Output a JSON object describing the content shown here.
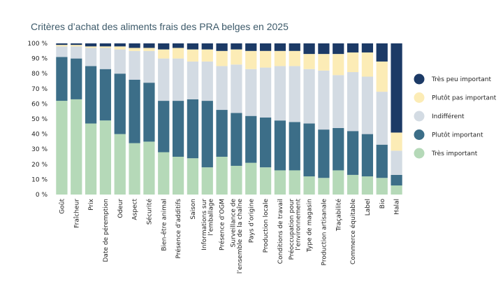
{
  "chart_data": {
    "type": "bar",
    "stacked": true,
    "title": "Critères d’achat des aliments frais des PRA belges en 2025",
    "xlabel": "",
    "ylabel": "",
    "ylim": [
      0,
      100
    ],
    "ytick_labels": [
      "0 %",
      "10 %",
      "20 %",
      "30 %",
      "40 %",
      "50 %",
      "60 %",
      "70 %",
      "80 %",
      "90 %",
      "100 %"
    ],
    "legend_position": "right",
    "categories": [
      "Goût",
      "Fraîcheur",
      "Prix",
      "Date de péremption",
      "Odeur",
      "Aspect",
      "Sécurité",
      "Bien-être animal",
      "Présence d’additifs",
      "Saison",
      "Informations sur l’emballage",
      "Présence d’OGM",
      "Surveillance de l’ensemble de la chaîne",
      "Pays d’origine",
      "Production locale",
      "Conditions de travail",
      "Préoccupation pour l’environnement",
      "Type de magasin",
      "Production artisanale",
      "Traçabilité",
      "Commerce équitable",
      "Label",
      "Bio",
      "Halal"
    ],
    "series": [
      {
        "name": "Très important",
        "color": "#b5d9b8",
        "values": [
          62,
          63,
          47,
          49,
          40,
          34,
          35,
          28,
          25,
          24,
          18,
          25,
          19,
          21,
          18,
          16,
          16,
          12,
          11,
          16,
          13,
          12,
          11,
          6
        ]
      },
      {
        "name": "Plutôt important",
        "color": "#3c6e88",
        "values": [
          29,
          27,
          38,
          34,
          40,
          42,
          39,
          34,
          37,
          39,
          44,
          31,
          35,
          31,
          33,
          33,
          32,
          35,
          32,
          28,
          29,
          28,
          22,
          7
        ]
      },
      {
        "name": "Indifférent",
        "color": "#d3dbe3",
        "values": [
          7,
          8,
          12,
          14,
          16,
          19,
          21,
          28,
          28,
          25,
          26,
          29,
          32,
          31,
          33,
          36,
          37,
          36,
          39,
          35,
          39,
          38,
          35,
          16
        ]
      },
      {
        "name": "Plutôt pas important",
        "color": "#fcecb6",
        "values": [
          1,
          1,
          1,
          1,
          2,
          2,
          2,
          6,
          7,
          8,
          8,
          10,
          10,
          12,
          11,
          10,
          10,
          10,
          11,
          14,
          13,
          16,
          20,
          12
        ]
      },
      {
        "name": "Très peu important",
        "color": "#1c3a66",
        "values": [
          1,
          1,
          2,
          2,
          2,
          3,
          3,
          4,
          3,
          4,
          4,
          5,
          4,
          5,
          5,
          5,
          5,
          7,
          7,
          7,
          6,
          6,
          12,
          59
        ]
      }
    ],
    "legend_order": [
      "Très peu important",
      "Plutôt pas important",
      "Indifférent",
      "Plutôt important",
      "Très important"
    ]
  }
}
